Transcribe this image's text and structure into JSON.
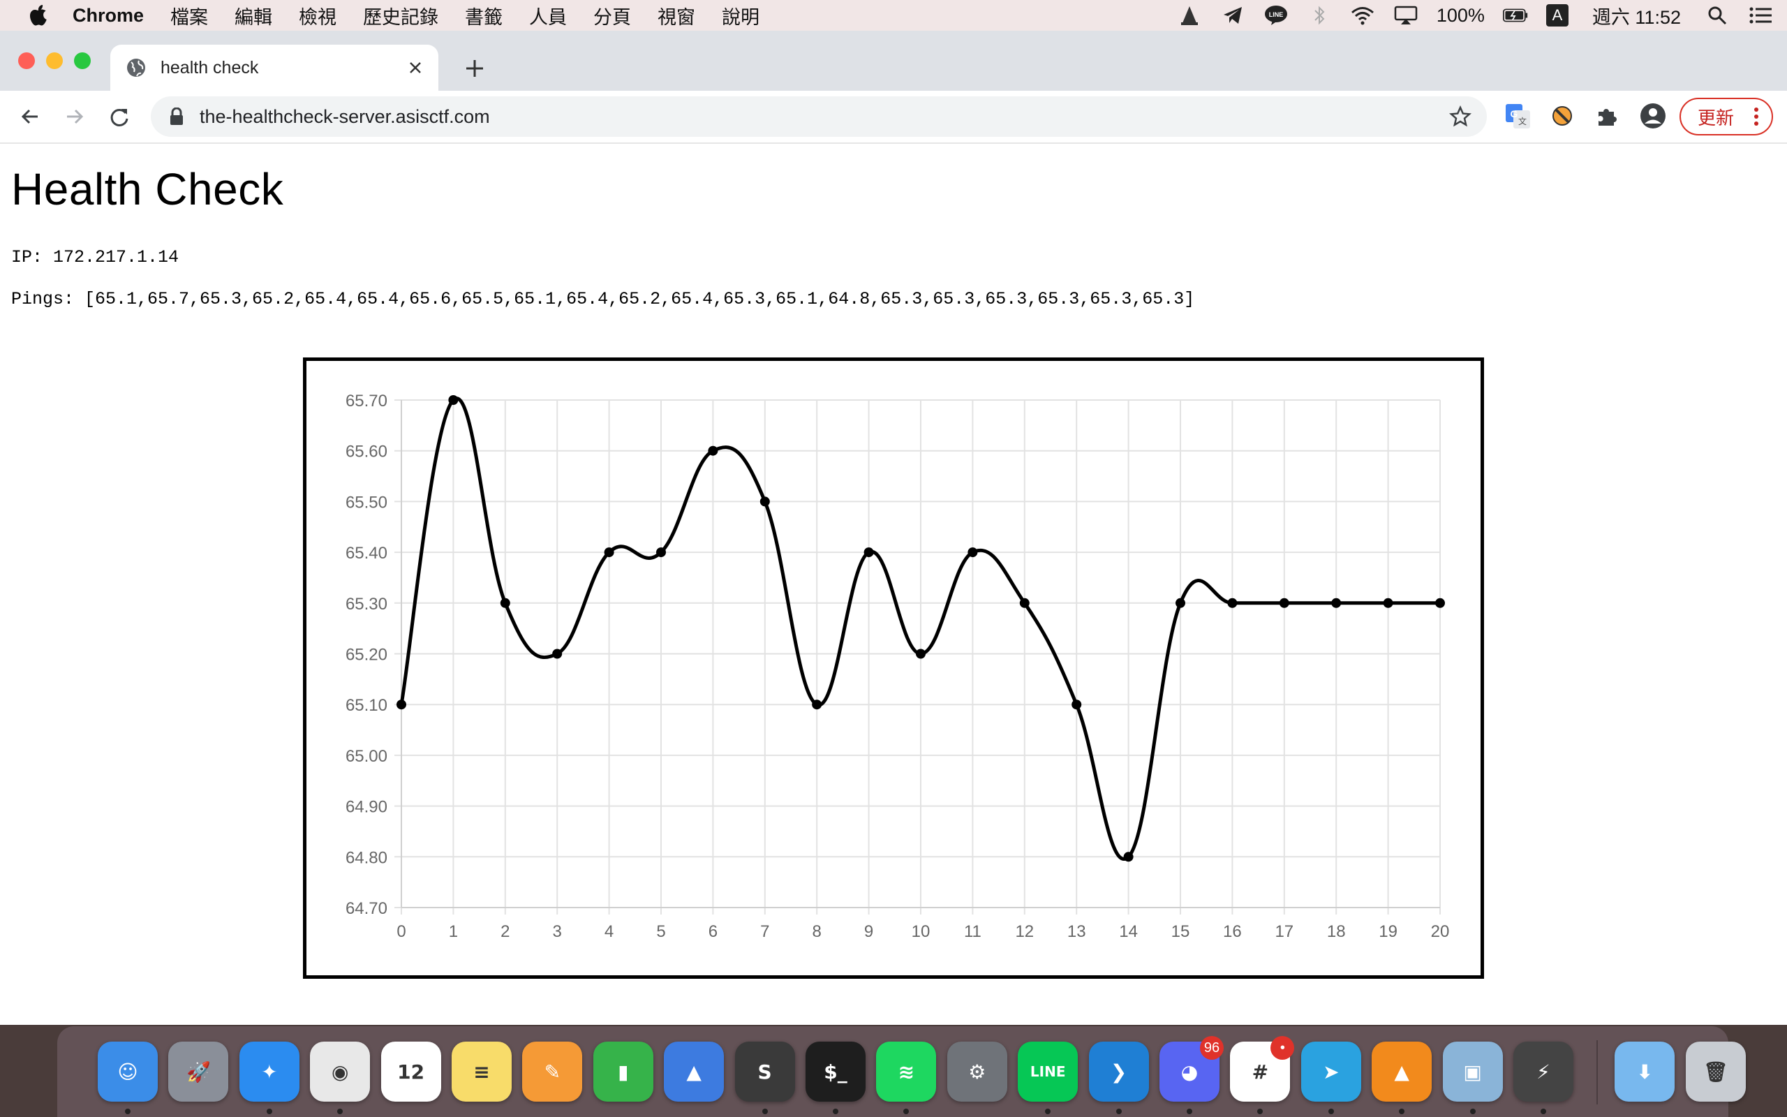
{
  "menubar": {
    "app_name": "Chrome",
    "items": [
      "檔案",
      "編輯",
      "檢視",
      "歷史記錄",
      "書籤",
      "人員",
      "分頁",
      "視窗",
      "說明"
    ],
    "battery": "100%",
    "input_method": "A",
    "clock": "週六 11:52"
  },
  "browser": {
    "tab": {
      "title": "health check"
    },
    "omnibox": {
      "url": "the-healthcheck-server.asisctf.com"
    },
    "update_button": "更新"
  },
  "page": {
    "heading": "Health Check",
    "ip_line": "IP: 172.217.1.14",
    "pings_line": "Pings: [65.1,65.7,65.3,65.2,65.4,65.4,65.6,65.5,65.1,65.4,65.2,65.4,65.3,65.1,64.8,65.3,65.3,65.3,65.3,65.3,65.3]"
  },
  "chart_data": {
    "type": "line",
    "x": [
      0,
      1,
      2,
      3,
      4,
      5,
      6,
      7,
      8,
      9,
      10,
      11,
      12,
      13,
      14,
      15,
      16,
      17,
      18,
      19,
      20
    ],
    "series": [
      {
        "values": [
          65.1,
          65.7,
          65.3,
          65.2,
          65.4,
          65.4,
          65.6,
          65.5,
          65.1,
          65.4,
          65.2,
          65.4,
          65.3,
          65.1,
          64.8,
          65.3,
          65.3,
          65.3,
          65.3,
          65.3,
          65.3
        ]
      }
    ],
    "ylim": [
      64.7,
      65.7
    ],
    "yticks": [
      "64.70",
      "64.80",
      "64.90",
      "65.00",
      "65.10",
      "65.20",
      "65.30",
      "65.40",
      "65.50",
      "65.60",
      "65.70"
    ],
    "xticks": [
      "0",
      "1",
      "2",
      "3",
      "4",
      "5",
      "6",
      "7",
      "8",
      "9",
      "10",
      "11",
      "12",
      "13",
      "14",
      "15",
      "16",
      "17",
      "18",
      "19",
      "20"
    ],
    "grid": true,
    "line_color": "#000000",
    "smooth": true
  },
  "dock": {
    "apps": [
      {
        "name": "finder",
        "glyph": "☺",
        "color": "#3b8de8",
        "running": true
      },
      {
        "name": "launchpad",
        "glyph": "🚀",
        "color": "#8a8f99",
        "running": false
      },
      {
        "name": "safari",
        "glyph": "✦",
        "color": "#2b8cf0",
        "running": true
      },
      {
        "name": "chrome",
        "glyph": "◉",
        "color": "#e8e8e8",
        "running": true
      },
      {
        "name": "calendar",
        "glyph": "12",
        "color": "#ffffff",
        "running": false
      },
      {
        "name": "notes",
        "glyph": "≡",
        "color": "#f8dc6a",
        "running": false
      },
      {
        "name": "pages",
        "glyph": "✎",
        "color": "#f59a36",
        "running": false
      },
      {
        "name": "numbers",
        "glyph": "▮",
        "color": "#36b34a",
        "running": false
      },
      {
        "name": "keynote",
        "glyph": "▲",
        "color": "#3d7be0",
        "running": false
      },
      {
        "name": "sublime-text",
        "glyph": "S",
        "color": "#3a3a3a",
        "running": true
      },
      {
        "name": "terminal",
        "glyph": "$_",
        "color": "#1e1e1e",
        "running": true
      },
      {
        "name": "spotify",
        "glyph": "≋",
        "color": "#1ed760",
        "running": true
      },
      {
        "name": "system-preferences",
        "glyph": "⚙",
        "color": "#6f7379",
        "running": false
      },
      {
        "name": "line",
        "glyph": "LINE",
        "color": "#06c755",
        "running": true
      },
      {
        "name": "vscode",
        "glyph": "❯",
        "color": "#1f7fd4",
        "running": true
      },
      {
        "name": "discord",
        "glyph": "◕",
        "color": "#5865f2",
        "running": true,
        "badge": "96"
      },
      {
        "name": "slack",
        "glyph": "#",
        "color": "#ffffff",
        "running": true,
        "badge": "•"
      },
      {
        "name": "telegram",
        "glyph": "➤",
        "color": "#2aa2e0",
        "running": true
      },
      {
        "name": "vlc",
        "glyph": "▲",
        "color": "#f28a1c",
        "running": true
      },
      {
        "name": "preview",
        "glyph": "▣",
        "color": "#8ab4d8",
        "running": true
      },
      {
        "name": "postman",
        "glyph": "⚡",
        "color": "#444444",
        "running": true
      },
      {
        "name": "downloads",
        "glyph": "⬇",
        "color": "#78b8ee",
        "running": false
      },
      {
        "name": "trash",
        "glyph": "🗑",
        "color": "#c8ccd2",
        "running": false
      }
    ]
  }
}
